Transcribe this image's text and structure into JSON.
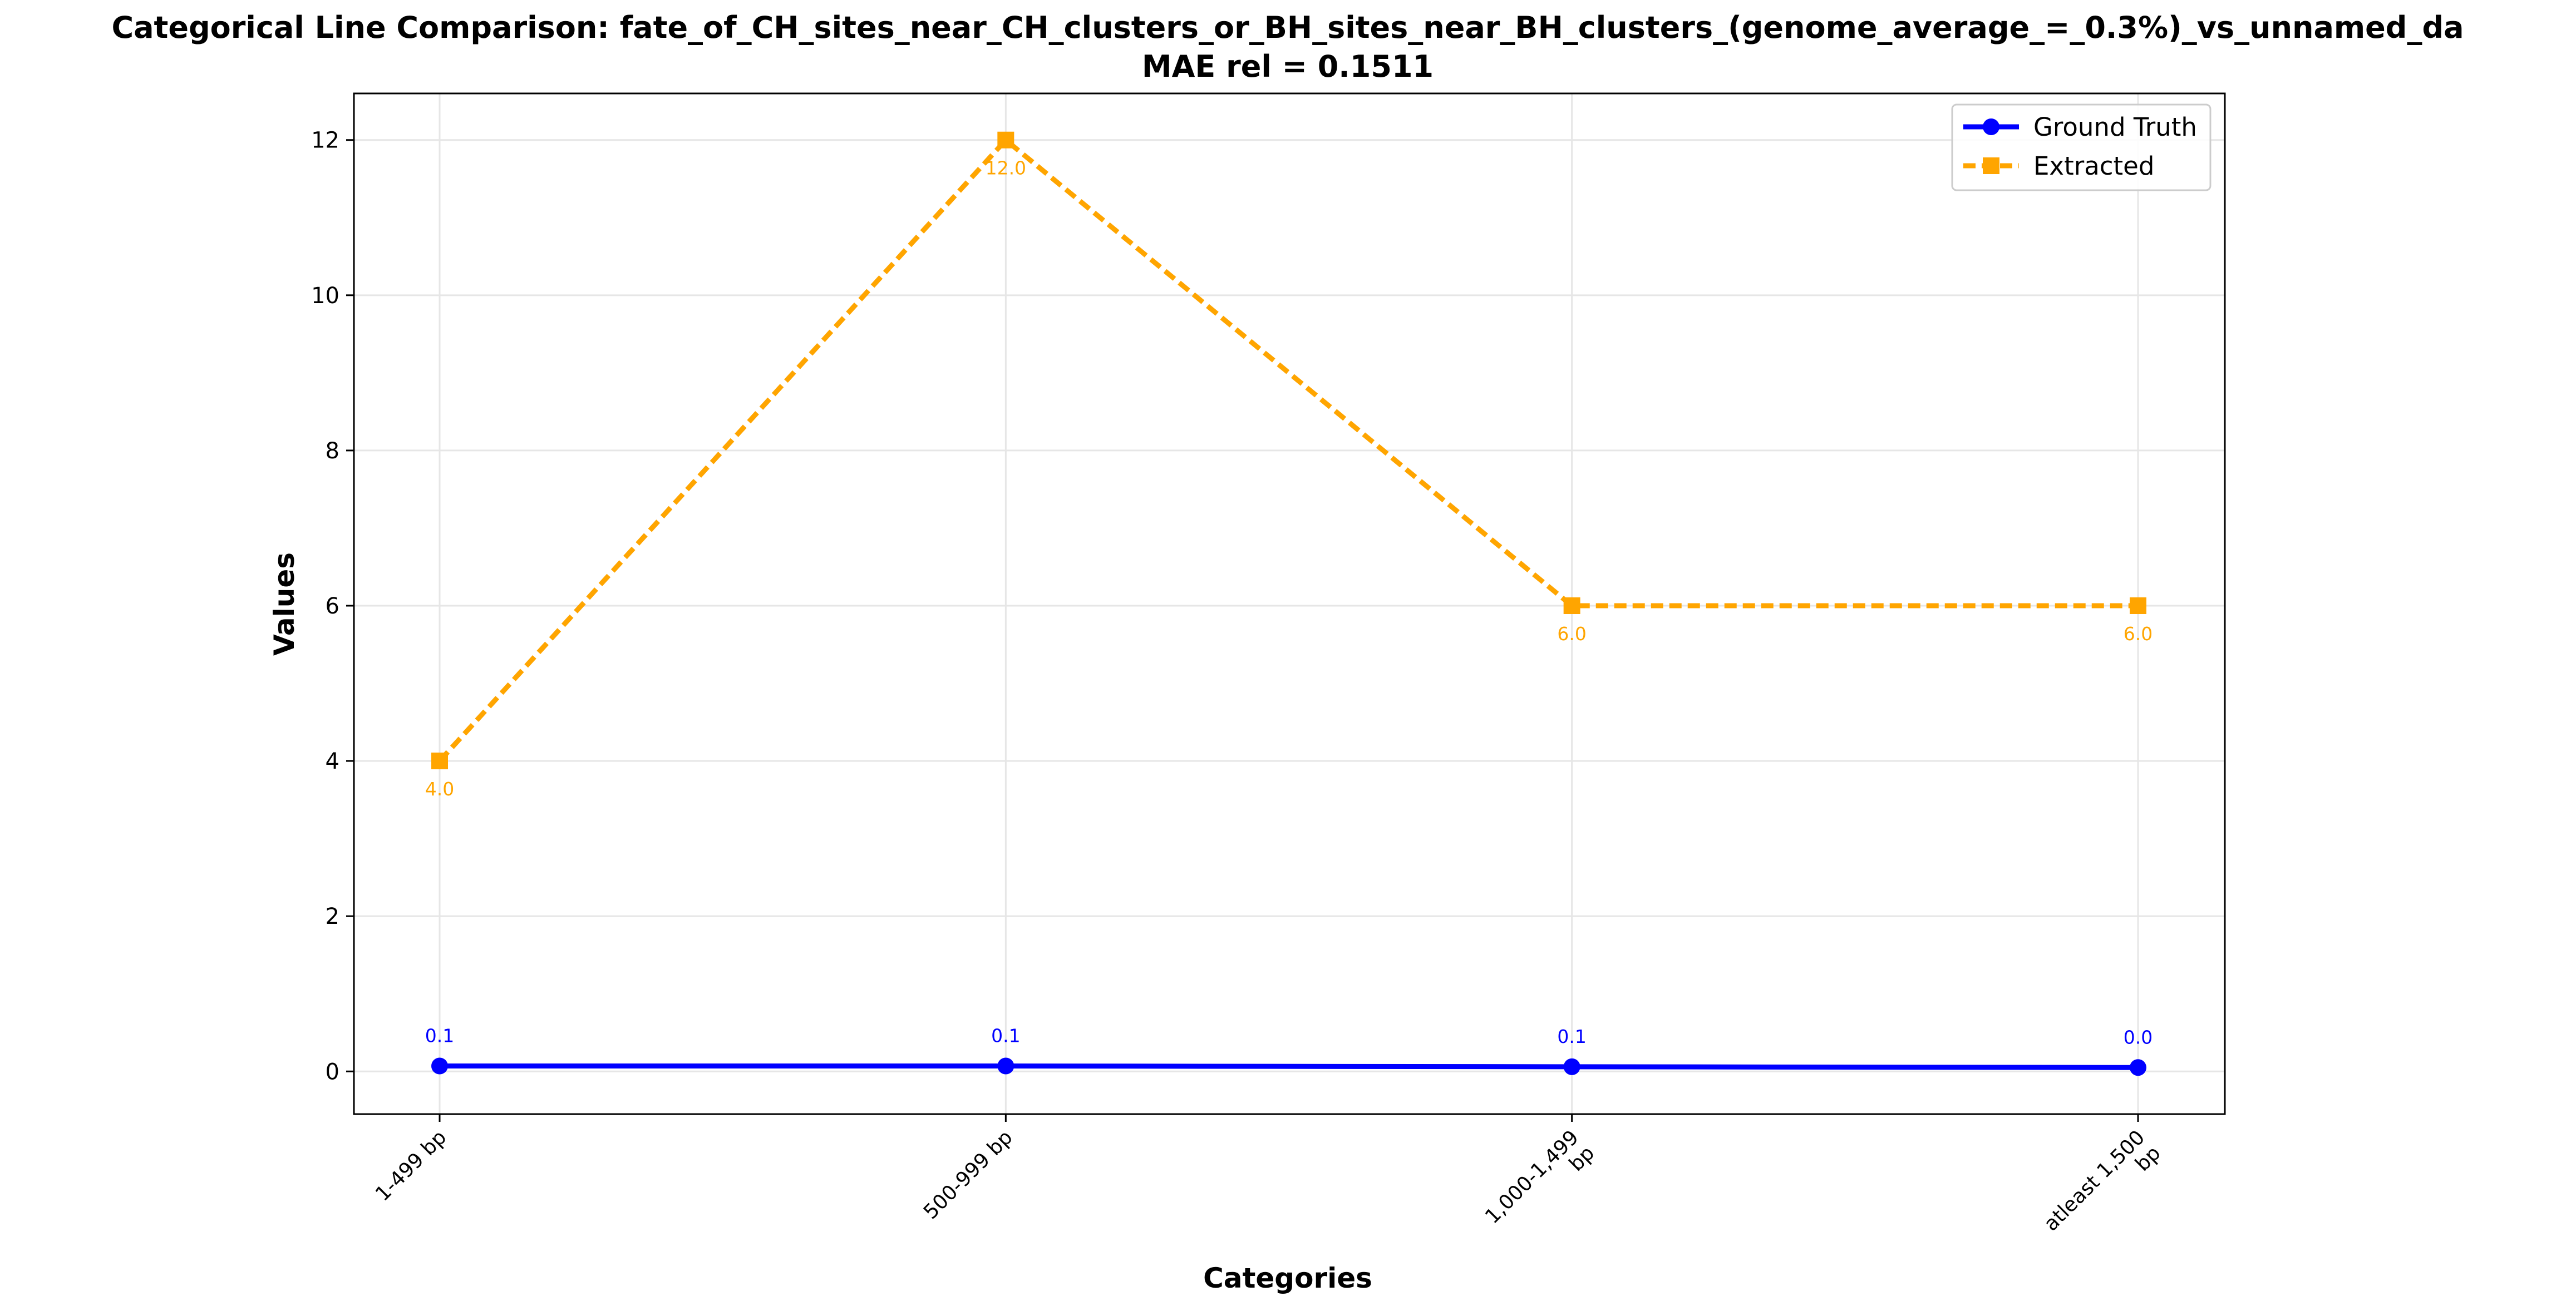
{
  "chart_data": {
    "type": "line",
    "title": "Categorical Line Comparison: fate_of_CH_sites_near_CH_clusters_or_BH_sites_near_BH_clusters_(genome_average_=_0.3%)_vs_unnamed_da",
    "subtitle": "MAE rel = 0.1511",
    "xlabel": "Categories",
    "ylabel": "Values",
    "categories": [
      "1-499 bp",
      "500-999 bp",
      "1,000-1,499 bp",
      "atleast 1,500 bp"
    ],
    "category_lines": [
      [
        "1-499 bp"
      ],
      [
        "500-999 bp"
      ],
      [
        "1,000-1,499",
        "bp"
      ],
      [
        "atleast 1,500",
        "bp"
      ]
    ],
    "ylim": [
      -0.55,
      12.6
    ],
    "yticks": [
      0,
      2,
      4,
      6,
      8,
      10,
      12
    ],
    "grid": true,
    "legend_position": "top-right",
    "series": [
      {
        "name": "Ground Truth",
        "values": [
          0.07,
          0.07,
          0.06,
          0.05
        ],
        "labels": [
          "0.1",
          "0.1",
          "0.1",
          "0.0"
        ],
        "color": "#0000ff",
        "marker": "circle",
        "dash": "solid"
      },
      {
        "name": "Extracted",
        "values": [
          4.0,
          12.0,
          6.0,
          6.0
        ],
        "labels": [
          "4.0",
          "12.0",
          "6.0",
          "6.0"
        ],
        "color": "#ffa500",
        "marker": "square",
        "dash": "dashed"
      }
    ]
  }
}
